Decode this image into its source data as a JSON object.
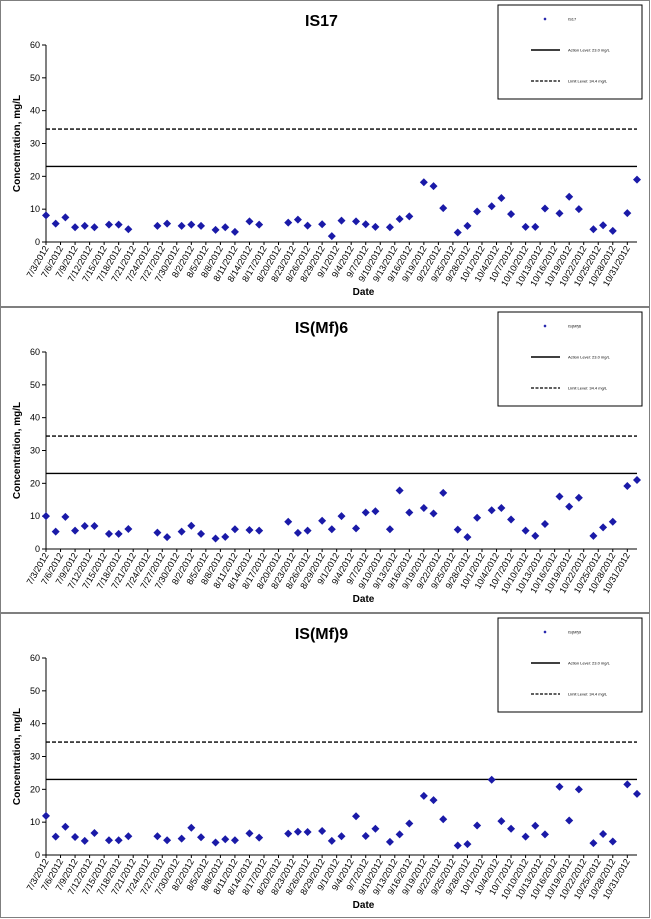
{
  "chart_data": [
    {
      "type": "scatter",
      "title": "IS17",
      "xlabel": "Date",
      "ylabel": "Concentration, mg/L",
      "ylim": [
        0,
        60
      ],
      "yticks": [
        "0",
        "10",
        "20",
        "30",
        "40",
        "50",
        "60"
      ],
      "xticks": [
        "7/3/2012",
        "7/6/2012",
        "7/9/2012",
        "7/12/2012",
        "7/15/2012",
        "7/18/2012",
        "7/21/2012",
        "7/24/2012",
        "7/27/2012",
        "7/30/2012",
        "8/2/2012",
        "8/5/2012",
        "8/8/2012",
        "8/11/2012",
        "8/14/2012",
        "8/17/2012",
        "8/20/2012",
        "8/23/2012",
        "8/26/2012",
        "8/29/2012",
        "9/1/2012",
        "9/4/2012",
        "9/7/2012",
        "9/10/2012",
        "9/13/2012",
        "9/16/2012",
        "9/19/2012",
        "9/22/2012",
        "9/25/2012",
        "9/28/2012",
        "10/1/2012",
        "10/4/2012",
        "10/7/2012",
        "10/10/2012",
        "10/13/2012",
        "10/16/2012",
        "10/19/2012",
        "10/22/2012",
        "10/25/2012",
        "10/28/2012",
        "10/31/2012"
      ],
      "legend": [
        "IS17",
        "Action Level: 23.0 mg/L",
        "Limit Level: 34.4 mg/L"
      ],
      "legend_position": "top-right",
      "point_color": "#1a1aa8",
      "action_level": 23.0,
      "limit_level": 34.4,
      "points": [
        [
          "7/3/2012",
          8.1
        ],
        [
          "7/5/2012",
          5.6
        ],
        [
          "7/7/2012",
          7.5
        ],
        [
          "7/9/2012",
          4.5
        ],
        [
          "7/11/2012",
          4.9
        ],
        [
          "7/13/2012",
          4.5
        ],
        [
          "7/16/2012",
          5.3
        ],
        [
          "7/18/2012",
          5.3
        ],
        [
          "7/20/2012",
          3.9
        ],
        [
          "7/26/2012",
          4.9
        ],
        [
          "7/28/2012",
          5.6
        ],
        [
          "7/31/2012",
          4.9
        ],
        [
          "8/2/2012",
          5.3
        ],
        [
          "8/4/2012",
          4.9
        ],
        [
          "8/7/2012",
          3.7
        ],
        [
          "8/9/2012",
          4.5
        ],
        [
          "8/11/2012",
          3.1
        ],
        [
          "8/14/2012",
          6.3
        ],
        [
          "8/16/2012",
          5.3
        ],
        [
          "8/22/2012",
          5.9
        ],
        [
          "8/24/2012",
          6.8
        ],
        [
          "8/26/2012",
          5.0
        ],
        [
          "8/29/2012",
          5.4
        ],
        [
          "8/31/2012",
          1.8
        ],
        [
          "9/2/2012",
          6.5
        ],
        [
          "9/5/2012",
          6.3
        ],
        [
          "9/7/2012",
          5.4
        ],
        [
          "9/9/2012",
          4.6
        ],
        [
          "9/12/2012",
          4.5
        ],
        [
          "9/14/2012",
          7.0
        ],
        [
          "9/16/2012",
          7.8
        ],
        [
          "9/19/2012",
          18.2
        ],
        [
          "9/21/2012",
          17.0
        ],
        [
          "9/23/2012",
          10.3
        ],
        [
          "9/26/2012",
          2.9
        ],
        [
          "9/28/2012",
          4.9
        ],
        [
          "9/30/2012",
          9.3
        ],
        [
          "10/3/2012",
          10.9
        ],
        [
          "10/5/2012",
          13.4
        ],
        [
          "10/7/2012",
          8.5
        ],
        [
          "10/10/2012",
          4.6
        ],
        [
          "10/12/2012",
          4.6
        ],
        [
          "10/14/2012",
          10.2
        ],
        [
          "10/17/2012",
          8.7
        ],
        [
          "10/19/2012",
          13.8
        ],
        [
          "10/21/2012",
          10.0
        ],
        [
          "10/24/2012",
          3.9
        ],
        [
          "10/26/2012",
          5.1
        ],
        [
          "10/28/2012",
          3.4
        ],
        [
          "10/31/2012",
          8.8
        ],
        [
          "11/2/2012",
          19.0
        ]
      ]
    },
    {
      "type": "scatter",
      "title": "IS(Mf)6",
      "xlabel": "Date",
      "ylabel": "Concentration, mg/L",
      "ylim": [
        0,
        60
      ],
      "yticks": [
        "0",
        "10",
        "20",
        "30",
        "40",
        "50",
        "60"
      ],
      "xticks": [
        "7/3/2012",
        "7/6/2012",
        "7/9/2012",
        "7/12/2012",
        "7/15/2012",
        "7/18/2012",
        "7/21/2012",
        "7/24/2012",
        "7/27/2012",
        "7/30/2012",
        "8/2/2012",
        "8/5/2012",
        "8/8/2012",
        "8/11/2012",
        "8/14/2012",
        "8/17/2012",
        "8/20/2012",
        "8/23/2012",
        "8/26/2012",
        "8/29/2012",
        "9/1/2012",
        "9/4/2012",
        "9/7/2012",
        "9/10/2012",
        "9/13/2012",
        "9/16/2012",
        "9/19/2012",
        "9/22/2012",
        "9/25/2012",
        "9/28/2012",
        "10/1/2012",
        "10/4/2012",
        "10/7/2012",
        "10/10/2012",
        "10/13/2012",
        "10/16/2012",
        "10/19/2012",
        "10/22/2012",
        "10/25/2012",
        "10/28/2012",
        "10/31/2012"
      ],
      "legend": [
        "IS(Mf)6",
        "Action Level: 23.0 mg/L",
        "Limit Level: 34.4 mg/L"
      ],
      "legend_position": "top-right",
      "point_color": "#1a1aa8",
      "action_level": 23.0,
      "limit_level": 34.4,
      "points": [
        [
          "7/3/2012",
          10.0
        ],
        [
          "7/5/2012",
          5.3
        ],
        [
          "7/7/2012",
          9.8
        ],
        [
          "7/9/2012",
          5.6
        ],
        [
          "7/11/2012",
          7.0
        ],
        [
          "7/13/2012",
          7.0
        ],
        [
          "7/16/2012",
          4.6
        ],
        [
          "7/18/2012",
          4.6
        ],
        [
          "7/20/2012",
          6.1
        ],
        [
          "7/26/2012",
          5.0
        ],
        [
          "7/28/2012",
          3.6
        ],
        [
          "7/31/2012",
          5.3
        ],
        [
          "8/2/2012",
          7.1
        ],
        [
          "8/4/2012",
          4.6
        ],
        [
          "8/7/2012",
          3.2
        ],
        [
          "8/9/2012",
          3.7
        ],
        [
          "8/11/2012",
          6.0
        ],
        [
          "8/14/2012",
          5.8
        ],
        [
          "8/16/2012",
          5.6
        ],
        [
          "8/22/2012",
          8.3
        ],
        [
          "8/24/2012",
          4.9
        ],
        [
          "8/26/2012",
          5.6
        ],
        [
          "8/29/2012",
          8.6
        ],
        [
          "8/31/2012",
          6.0
        ],
        [
          "9/2/2012",
          10.0
        ],
        [
          "9/5/2012",
          6.3
        ],
        [
          "9/7/2012",
          11.1
        ],
        [
          "9/9/2012",
          11.5
        ],
        [
          "9/12/2012",
          6.0
        ],
        [
          "9/14/2012",
          17.8
        ],
        [
          "9/16/2012",
          11.1
        ],
        [
          "9/19/2012",
          12.5
        ],
        [
          "9/21/2012",
          10.8
        ],
        [
          "9/23/2012",
          17.1
        ],
        [
          "9/26/2012",
          5.9
        ],
        [
          "9/28/2012",
          3.6
        ],
        [
          "9/30/2012",
          9.5
        ],
        [
          "10/3/2012",
          11.8
        ],
        [
          "10/5/2012",
          12.5
        ],
        [
          "10/7/2012",
          9.0
        ],
        [
          "10/10/2012",
          5.6
        ],
        [
          "10/12/2012",
          4.0
        ],
        [
          "10/14/2012",
          7.6
        ],
        [
          "10/17/2012",
          16.0
        ],
        [
          "10/19/2012",
          12.9
        ],
        [
          "10/21/2012",
          15.6
        ],
        [
          "10/24/2012",
          4.0
        ],
        [
          "10/26/2012",
          6.6
        ],
        [
          "10/28/2012",
          8.3
        ],
        [
          "10/31/2012",
          19.2
        ],
        [
          "11/2/2012",
          21.0
        ]
      ]
    },
    {
      "type": "scatter",
      "title": "IS(Mf)9",
      "xlabel": "Date",
      "ylabel": "Concentration, mg/L",
      "ylim": [
        0,
        60
      ],
      "yticks": [
        "0",
        "10",
        "20",
        "30",
        "40",
        "50",
        "60"
      ],
      "xticks": [
        "7/3/2012",
        "7/6/2012",
        "7/9/2012",
        "7/12/2012",
        "7/15/2012",
        "7/18/2012",
        "7/21/2012",
        "7/24/2012",
        "7/27/2012",
        "7/30/2012",
        "8/2/2012",
        "8/5/2012",
        "8/8/2012",
        "8/11/2012",
        "8/14/2012",
        "8/17/2012",
        "8/20/2012",
        "8/23/2012",
        "8/26/2012",
        "8/29/2012",
        "9/1/2012",
        "9/4/2012",
        "9/7/2012",
        "9/10/2012",
        "9/13/2012",
        "9/16/2012",
        "9/19/2012",
        "9/22/2012",
        "9/25/2012",
        "9/28/2012",
        "10/1/2012",
        "10/4/2012",
        "10/7/2012",
        "10/10/2012",
        "10/13/2012",
        "10/16/2012",
        "10/19/2012",
        "10/22/2012",
        "10/25/2012",
        "10/28/2012",
        "10/31/2012"
      ],
      "legend": [
        "IS(Mf)9",
        "Action Level: 23.0 mg/L",
        "Limit Level: 34.4 mg/L"
      ],
      "legend_position": "top-right",
      "point_color": "#1a1aa8",
      "action_level": 23.0,
      "limit_level": 34.4,
      "points": [
        [
          "7/3/2012",
          11.9
        ],
        [
          "7/5/2012",
          5.6
        ],
        [
          "7/7/2012",
          8.6
        ],
        [
          "7/9/2012",
          5.5
        ],
        [
          "7/11/2012",
          4.3
        ],
        [
          "7/13/2012",
          6.7
        ],
        [
          "7/16/2012",
          4.5
        ],
        [
          "7/18/2012",
          4.5
        ],
        [
          "7/20/2012",
          5.7
        ],
        [
          "7/26/2012",
          5.7
        ],
        [
          "7/28/2012",
          4.5
        ],
        [
          "7/31/2012",
          5.0
        ],
        [
          "8/2/2012",
          8.3
        ],
        [
          "8/4/2012",
          5.4
        ],
        [
          "8/7/2012",
          3.8
        ],
        [
          "8/9/2012",
          4.8
        ],
        [
          "8/11/2012",
          4.5
        ],
        [
          "8/14/2012",
          6.6
        ],
        [
          "8/16/2012",
          5.3
        ],
        [
          "8/22/2012",
          6.5
        ],
        [
          "8/24/2012",
          7.1
        ],
        [
          "8/26/2012",
          7.0
        ],
        [
          "8/29/2012",
          7.3
        ],
        [
          "8/31/2012",
          4.3
        ],
        [
          "9/2/2012",
          5.7
        ],
        [
          "9/5/2012",
          11.8
        ],
        [
          "9/7/2012",
          5.8
        ],
        [
          "9/9/2012",
          8.0
        ],
        [
          "9/12/2012",
          4.0
        ],
        [
          "9/14/2012",
          6.3
        ],
        [
          "9/16/2012",
          9.6
        ],
        [
          "9/19/2012",
          18.0
        ],
        [
          "9/21/2012",
          16.7
        ],
        [
          "9/23/2012",
          10.9
        ],
        [
          "9/26/2012",
          2.9
        ],
        [
          "9/28/2012",
          3.3
        ],
        [
          "9/30/2012",
          9.0
        ],
        [
          "10/3/2012",
          22.9
        ],
        [
          "10/5/2012",
          10.3
        ],
        [
          "10/7/2012",
          8.0
        ],
        [
          "10/10/2012",
          5.6
        ],
        [
          "10/12/2012",
          8.9
        ],
        [
          "10/14/2012",
          6.3
        ],
        [
          "10/17/2012",
          20.8
        ],
        [
          "10/19/2012",
          10.5
        ],
        [
          "10/21/2012",
          20.0
        ],
        [
          "10/24/2012",
          3.6
        ],
        [
          "10/26/2012",
          6.4
        ],
        [
          "10/28/2012",
          4.1
        ],
        [
          "10/31/2012",
          21.5
        ],
        [
          "11/2/2012",
          18.6
        ]
      ]
    }
  ]
}
